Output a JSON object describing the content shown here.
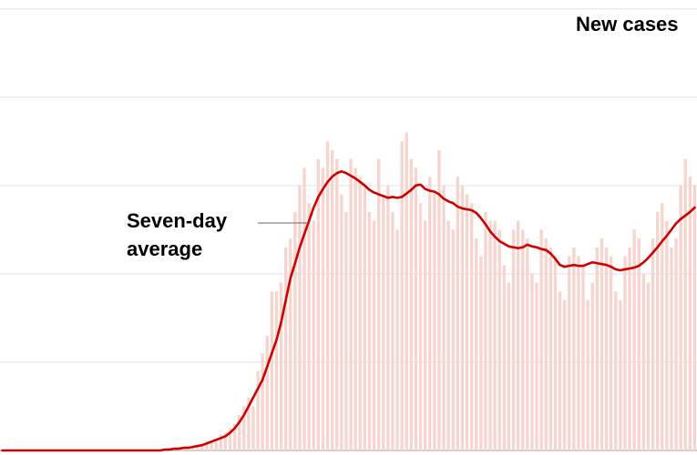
{
  "chart_data": {
    "type": "bar-line",
    "title": "New cases",
    "annotation": [
      "Seven-day",
      "average"
    ],
    "categories": [
      null,
      null,
      null,
      null,
      null,
      null,
      null,
      null,
      null,
      null,
      null,
      null,
      null,
      null,
      null,
      null,
      null,
      null,
      null,
      null,
      null,
      null,
      null,
      null,
      null,
      null,
      null,
      null,
      null,
      null,
      null,
      null,
      null,
      null,
      null,
      null,
      null,
      null,
      null,
      null,
      null,
      null,
      null,
      null,
      null,
      null,
      null,
      null,
      null,
      null,
      null,
      null,
      null,
      null,
      null,
      null,
      null,
      null,
      null,
      null,
      null,
      null,
      null,
      null,
      null,
      null,
      null,
      null,
      null,
      null,
      null,
      null,
      null,
      null,
      null,
      null,
      null,
      null,
      null,
      null,
      null,
      null,
      null,
      null,
      null,
      null,
      null,
      null,
      null,
      null,
      null,
      null,
      null,
      null,
      null,
      null,
      null,
      null,
      null,
      null,
      null,
      null,
      null,
      null,
      null,
      null,
      null,
      null,
      null,
      null,
      null,
      null,
      null,
      null,
      null,
      null,
      null,
      null,
      null,
      null,
      null,
      null,
      null,
      null,
      null,
      null,
      null,
      null,
      null,
      null,
      null,
      null,
      null,
      null,
      null,
      null,
      null,
      null,
      null,
      null,
      null,
      null,
      null,
      null,
      null,
      null,
      null,
      null,
      null,
      null
    ],
    "bars": {
      "color": "#f7d5cf",
      "values": [
        0,
        0,
        0,
        0,
        0,
        0,
        0,
        0,
        0,
        0,
        0,
        0,
        0,
        0,
        0,
        0,
        0,
        0,
        0,
        0,
        0,
        0,
        0,
        0,
        0,
        0,
        0,
        0,
        0,
        0,
        0,
        0,
        0,
        0,
        0,
        0.01,
        0.02,
        0.02,
        0.02,
        0.03,
        0.04,
        0.04,
        0.05,
        0.07,
        0.1,
        0.1,
        0.12,
        0.18,
        0.2,
        0.25,
        0.3,
        0.4,
        0.5,
        0.6,
        0.5,
        0.9,
        1.1,
        1.3,
        1.8,
        1.8,
        1.9,
        2.3,
        2.4,
        2.7,
        3.0,
        3.2,
        2.8,
        2.6,
        3.3,
        3.2,
        3.5,
        3.4,
        3.3,
        2.9,
        2.7,
        3.3,
        3.2,
        3.1,
        3.0,
        2.7,
        2.6,
        3.3,
        2.9,
        3.0,
        2.7,
        2.5,
        3.5,
        3.6,
        3.3,
        3.2,
        2.8,
        2.6,
        3.1,
        2.9,
        3.4,
        3.0,
        2.6,
        2.5,
        3.1,
        3.0,
        2.9,
        2.8,
        2.4,
        2.2,
        2.7,
        2.6,
        2.6,
        2.5,
        2.1,
        1.9,
        2.5,
        2.6,
        2.5,
        2.4,
        2.0,
        1.9,
        2.5,
        2.4,
        2.3,
        2.2,
        1.8,
        1.7,
        2.2,
        2.3,
        2.2,
        2.1,
        1.7,
        1.9,
        2.3,
        2.4,
        2.3,
        2.2,
        1.8,
        1.7,
        2.2,
        2.3,
        2.5,
        2.4,
        2.0,
        1.9,
        2.4,
        2.7,
        2.8,
        2.6,
        2.3,
        2.4,
        3.0,
        3.3,
        3.1,
        3.0
      ]
    },
    "average": {
      "color": "#cc0000",
      "values": [
        0,
        0,
        0,
        0,
        0,
        0,
        0,
        0,
        0,
        0,
        0,
        0,
        0,
        0,
        0,
        0,
        0,
        0,
        0,
        0,
        0,
        0,
        0,
        0,
        0,
        0,
        0,
        0,
        0,
        0,
        0,
        0,
        0,
        0,
        0,
        0.01,
        0.01,
        0.02,
        0.02,
        0.03,
        0.03,
        0.04,
        0.05,
        0.06,
        0.08,
        0.1,
        0.12,
        0.14,
        0.16,
        0.2,
        0.25,
        0.32,
        0.4,
        0.5,
        0.6,
        0.7,
        0.8,
        0.95,
        1.1,
        1.25,
        1.45,
        1.7,
        1.95,
        2.12,
        2.3,
        2.45,
        2.6,
        2.75,
        2.87,
        2.96,
        3.04,
        3.1,
        3.14,
        3.16,
        3.14,
        3.11,
        3.08,
        3.04,
        3.0,
        2.95,
        2.92,
        2.9,
        2.88,
        2.86,
        2.87,
        2.86,
        2.87,
        2.91,
        2.95,
        3.0,
        3.01,
        2.96,
        2.94,
        2.93,
        2.9,
        2.85,
        2.82,
        2.8,
        2.76,
        2.74,
        2.73,
        2.72,
        2.69,
        2.63,
        2.56,
        2.48,
        2.42,
        2.37,
        2.34,
        2.31,
        2.3,
        2.29,
        2.3,
        2.33,
        2.31,
        2.3,
        2.28,
        2.27,
        2.23,
        2.17,
        2.1,
        2.08,
        2.09,
        2.1,
        2.09,
        2.09,
        2.11,
        2.13,
        2.12,
        2.11,
        2.1,
        2.08,
        2.05,
        2.04,
        2.05,
        2.06,
        2.07,
        2.09,
        2.13,
        2.18,
        2.24,
        2.3,
        2.37,
        2.43,
        2.5,
        2.57,
        2.62,
        2.66,
        2.7,
        2.75
      ]
    },
    "ylim": [
      0,
      5.1
    ],
    "yticks": [
      0,
      1,
      2,
      3,
      4,
      5
    ],
    "grid": true
  }
}
